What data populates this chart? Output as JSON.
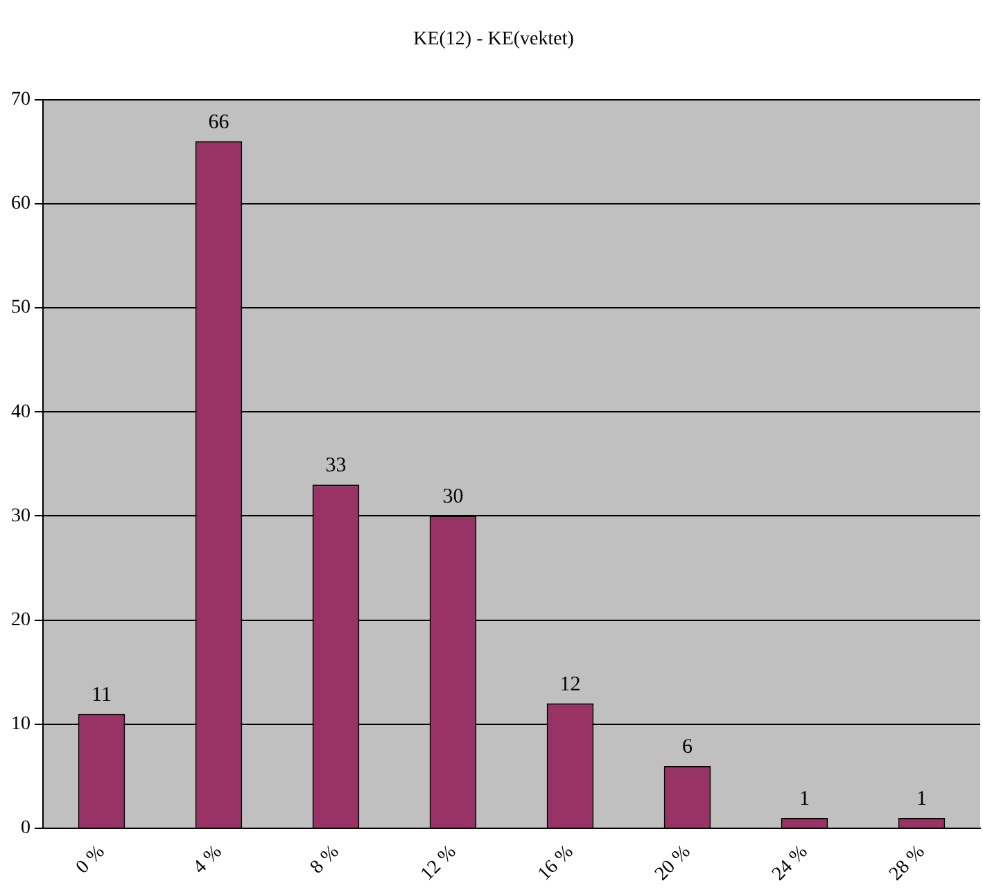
{
  "chart_data": {
    "type": "bar",
    "title": "KE(12) - KE(vektet)",
    "categories": [
      "0 %",
      "4 %",
      "8 %",
      "12 %",
      "16 %",
      "20 %",
      "24 %",
      "28 %"
    ],
    "values": [
      11,
      66,
      33,
      30,
      12,
      6,
      1,
      1
    ],
    "color": "#993366",
    "ylim": [
      0,
      70
    ],
    "yticks": [
      0,
      10,
      20,
      30,
      40,
      50,
      60,
      70
    ],
    "grid": "y",
    "data_labels": true
  }
}
